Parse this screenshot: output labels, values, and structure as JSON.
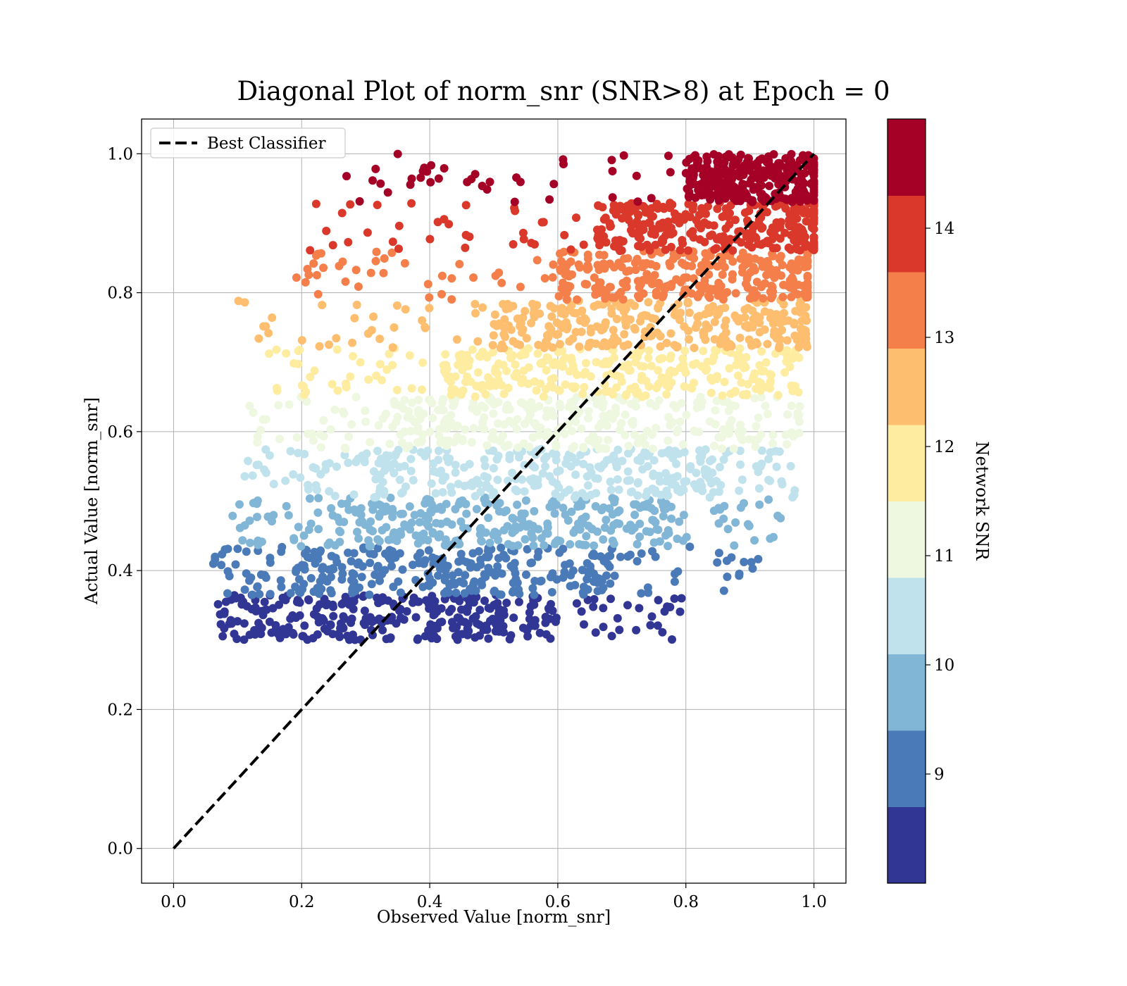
{
  "chart_data": {
    "type": "scatter",
    "title": "Diagonal Plot of norm_snr (SNR>8) at Epoch = 0",
    "xlabel": "Observed Value [norm_snr]",
    "ylabel": "Actual Value [norm_snr]",
    "xlim": [
      -0.05,
      1.05
    ],
    "ylim": [
      -0.05,
      1.05
    ],
    "xticks": [
      "0.0",
      "0.2",
      "0.4",
      "0.6",
      "0.8",
      "1.0"
    ],
    "yticks": [
      "0.0",
      "0.2",
      "0.4",
      "0.6",
      "0.8",
      "1.0"
    ],
    "grid": true,
    "legend": {
      "placement": "upper-left",
      "entries": [
        "Best Classifier"
      ]
    },
    "reference_line": {
      "label": "Best Classifier",
      "style": "dashed",
      "color": "#000000",
      "x": [
        0.0,
        1.0
      ],
      "y": [
        0.0,
        1.0
      ]
    },
    "colorbar": {
      "label": "Network SNR",
      "range": [
        8,
        15
      ],
      "ticks": [
        "9",
        "10",
        "11",
        "12",
        "13",
        "14"
      ],
      "bins": [
        {
          "from": 8.0,
          "to": 8.7,
          "color": "#313695"
        },
        {
          "from": 8.7,
          "to": 9.4,
          "color": "#4a7ab7"
        },
        {
          "from": 9.4,
          "to": 10.1,
          "color": "#82b6d6"
        },
        {
          "from": 10.1,
          "to": 10.8,
          "color": "#c0e2ed"
        },
        {
          "from": 10.8,
          "to": 11.5,
          "color": "#eef7e0"
        },
        {
          "from": 11.5,
          "to": 12.2,
          "color": "#feeda1"
        },
        {
          "from": 12.2,
          "to": 12.9,
          "color": "#fdbe70"
        },
        {
          "from": 12.9,
          "to": 13.6,
          "color": "#f47f4a"
        },
        {
          "from": 13.6,
          "to": 14.3,
          "color": "#d9382a"
        },
        {
          "from": 14.3,
          "to": 15.0,
          "color": "#a50026"
        }
      ]
    },
    "bands": [
      {
        "snr": 8.35,
        "y_range": [
          0.3,
          0.365
        ],
        "x_core": [
          0.13,
          0.6
        ],
        "x_full": [
          0.06,
          0.8
        ],
        "color": "#313695"
      },
      {
        "snr": 9.05,
        "y_range": [
          0.365,
          0.435
        ],
        "x_core": [
          0.19,
          0.7
        ],
        "x_full": [
          0.06,
          0.92
        ],
        "color": "#4a7ab7"
      },
      {
        "snr": 9.75,
        "y_range": [
          0.435,
          0.505
        ],
        "x_core": [
          0.25,
          0.78
        ],
        "x_full": [
          0.09,
          0.96
        ],
        "color": "#82b6d6"
      },
      {
        "snr": 10.45,
        "y_range": [
          0.505,
          0.575
        ],
        "x_core": [
          0.28,
          0.85
        ],
        "x_full": [
          0.11,
          0.97
        ],
        "color": "#c0e2ed"
      },
      {
        "snr": 11.15,
        "y_range": [
          0.575,
          0.65
        ],
        "x_core": [
          0.33,
          0.9
        ],
        "x_full": [
          0.1,
          0.98
        ],
        "color": "#eef7e0"
      },
      {
        "snr": 11.85,
        "y_range": [
          0.65,
          0.72
        ],
        "x_core": [
          0.42,
          0.93
        ],
        "x_full": [
          0.14,
          0.98
        ],
        "color": "#feeda1"
      },
      {
        "snr": 12.55,
        "y_range": [
          0.72,
          0.79
        ],
        "x_core": [
          0.5,
          0.97
        ],
        "x_full": [
          0.1,
          0.99
        ],
        "color": "#fdbe70"
      },
      {
        "snr": 13.25,
        "y_range": [
          0.79,
          0.86
        ],
        "x_core": [
          0.6,
          0.99
        ],
        "x_full": [
          0.19,
          0.99
        ],
        "color": "#f47f4a"
      },
      {
        "snr": 13.95,
        "y_range": [
          0.86,
          0.93
        ],
        "x_core": [
          0.66,
          1.0
        ],
        "x_full": [
          0.21,
          1.0
        ],
        "color": "#d9382a"
      },
      {
        "snr": 14.65,
        "y_range": [
          0.93,
          1.0
        ],
        "x_core": [
          0.8,
          1.0
        ],
        "x_full": [
          0.24,
          1.0
        ],
        "color": "#a50026"
      }
    ]
  }
}
